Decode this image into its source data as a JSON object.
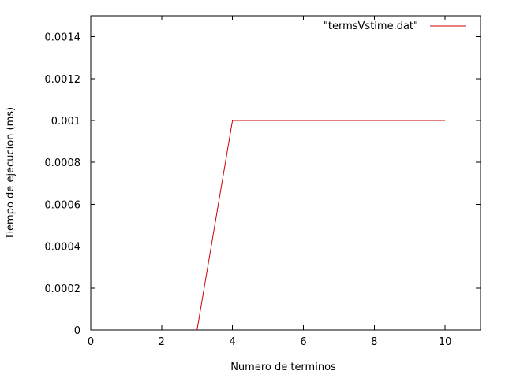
{
  "chart_data": {
    "type": "line",
    "title": "",
    "xlabel": "Numero de terminos",
    "ylabel": "Tiempo de ejecucion (ms)",
    "xlim": [
      0,
      11
    ],
    "ylim": [
      0,
      0.0015
    ],
    "x_ticks": [
      0,
      2,
      4,
      6,
      8,
      10
    ],
    "y_ticks": [
      0,
      0.0002,
      0.0004,
      0.0006,
      0.0008,
      0.001,
      0.0012,
      0.0014
    ],
    "x_tick_labels": [
      "0",
      "2",
      "4",
      "6",
      "8",
      "10"
    ],
    "y_tick_labels": [
      "0",
      "0.0002",
      "0.0004",
      "0.0006",
      "0.0008",
      "0.001",
      "0.0012",
      "0.0014"
    ],
    "grid": false,
    "legend_position": "top-right",
    "series": [
      {
        "name": "\"termsVstime.dat\"",
        "color": "#cc0000",
        "x": [
          3,
          4,
          5,
          6,
          7,
          8,
          9,
          10
        ],
        "y": [
          0,
          0.001,
          0.001,
          0.001,
          0.001,
          0.001,
          0.001,
          0.001
        ]
      }
    ]
  }
}
